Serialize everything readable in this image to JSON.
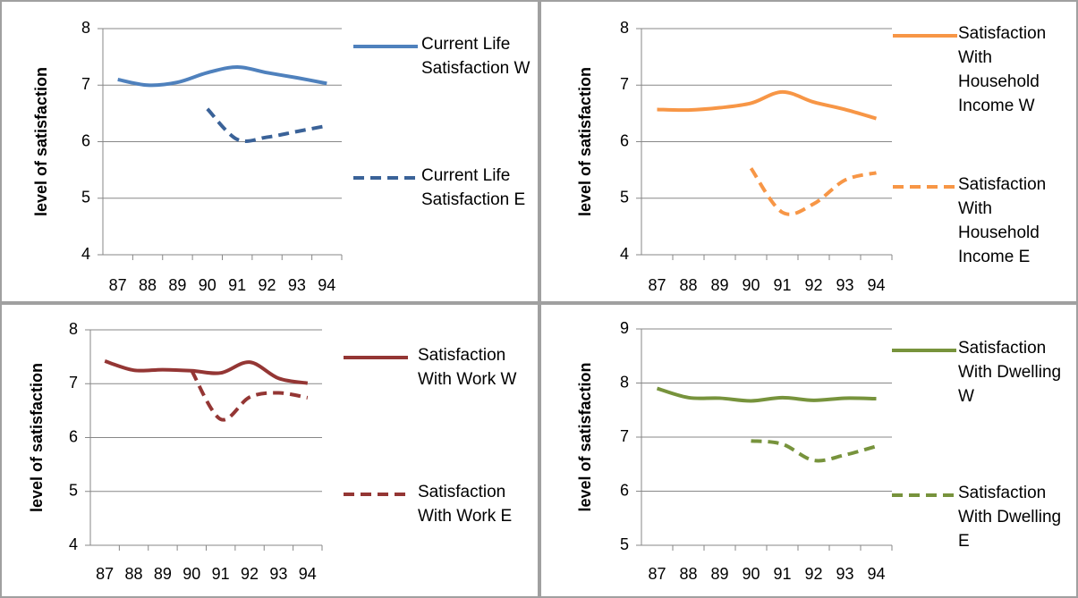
{
  "chart_data": [
    {
      "type": "line",
      "y_label": "level of satisfaction",
      "categories": [
        "87",
        "88",
        "89",
        "90",
        "91",
        "92",
        "93",
        "94"
      ],
      "ylim": [
        4,
        8
      ],
      "yticks": [
        4,
        5,
        6,
        7,
        8
      ],
      "grid": true,
      "series": [
        {
          "name": "Current Life Satisfaction W",
          "color": "#4f81bd",
          "dash": "solid",
          "values": [
            7.1,
            7.0,
            7.05,
            7.22,
            7.32,
            7.22,
            7.13,
            7.03
          ]
        },
        {
          "name": "Current Life Satisfaction E",
          "color": "#3a6298",
          "dash": "dashed",
          "values": [
            null,
            null,
            null,
            6.58,
            6.04,
            6.08,
            6.18,
            6.28
          ]
        }
      ]
    },
    {
      "type": "line",
      "y_label": "level of satisfaction",
      "categories": [
        "87",
        "88",
        "89",
        "90",
        "91",
        "92",
        "93",
        "94"
      ],
      "ylim": [
        4,
        8
      ],
      "yticks": [
        4,
        5,
        6,
        7,
        8
      ],
      "grid": true,
      "series": [
        {
          "name": "Satisfaction With Household Income W",
          "color": "#f79646",
          "dash": "solid",
          "values": [
            6.57,
            6.56,
            6.6,
            6.68,
            6.88,
            6.7,
            6.57,
            6.41
          ]
        },
        {
          "name": "Satisfaction With Household Income E",
          "color": "#f79646",
          "dash": "dashed",
          "values": [
            null,
            null,
            null,
            5.53,
            4.75,
            4.9,
            5.32,
            5.45
          ]
        }
      ]
    },
    {
      "type": "line",
      "y_label": "level of satisfaction",
      "categories": [
        "87",
        "88",
        "89",
        "90",
        "91",
        "92",
        "93",
        "94"
      ],
      "ylim": [
        4,
        8
      ],
      "yticks": [
        4,
        5,
        6,
        7,
        8
      ],
      "grid": true,
      "series": [
        {
          "name": "Satisfaction With Work W",
          "color": "#943634",
          "dash": "solid",
          "values": [
            7.42,
            7.25,
            7.26,
            7.24,
            7.2,
            7.4,
            7.1,
            7.01
          ]
        },
        {
          "name": "Satisfaction With Work E",
          "color": "#943634",
          "dash": "dashed",
          "values": [
            null,
            null,
            null,
            7.24,
            6.34,
            6.75,
            6.83,
            6.74
          ]
        }
      ]
    },
    {
      "type": "line",
      "y_label": "level of satisfaction",
      "categories": [
        "87",
        "88",
        "89",
        "90",
        "91",
        "92",
        "93",
        "94"
      ],
      "ylim": [
        5,
        9
      ],
      "yticks": [
        5,
        6,
        7,
        8,
        9
      ],
      "grid": true,
      "series": [
        {
          "name": "Satisfaction With Dwelling W",
          "color": "#77933c",
          "dash": "solid",
          "values": [
            7.9,
            7.73,
            7.72,
            7.67,
            7.73,
            7.68,
            7.72,
            7.71
          ]
        },
        {
          "name": "Satisfaction With Dwelling E",
          "color": "#77933c",
          "dash": "dashed",
          "values": [
            null,
            null,
            null,
            6.93,
            6.87,
            6.57,
            6.67,
            6.83
          ]
        }
      ]
    }
  ]
}
